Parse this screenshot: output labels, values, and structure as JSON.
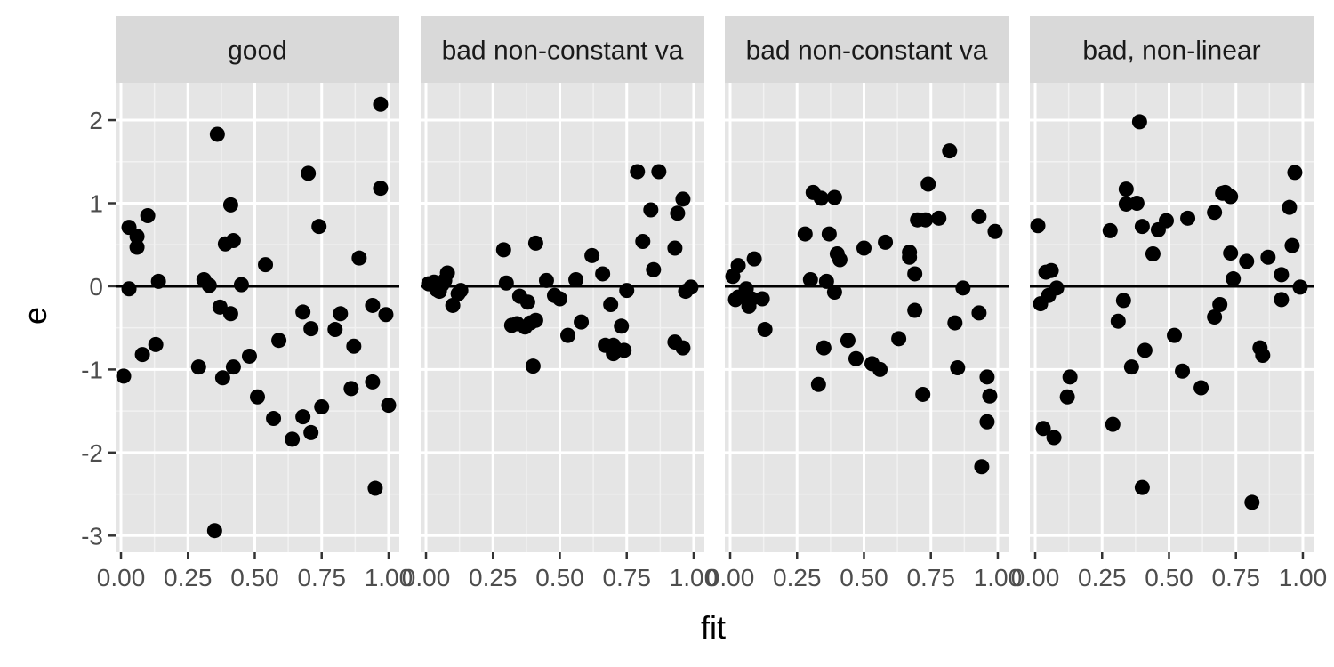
{
  "chart_data": {
    "type": "scatter",
    "xlabel": "fit",
    "ylabel": "e",
    "xlim": [
      -0.02,
      1.04
    ],
    "ylim": [
      -3.2,
      2.45
    ],
    "x_ticks": [
      0,
      0.25,
      0.5,
      0.75,
      1
    ],
    "x_tick_labels": [
      "0.00",
      "0.25",
      "0.50",
      "0.75",
      "1.00"
    ],
    "y_ticks": [
      2,
      1,
      0,
      -1,
      -2,
      -3
    ],
    "y_tick_labels": [
      "2",
      "1",
      "0",
      "-1",
      "-2",
      "-3"
    ],
    "reference_line": 0,
    "grid": true,
    "panel_background": "#e5e5e5",
    "strip_background": "#d9d9d9",
    "point_color": "#000000",
    "panels": [
      {
        "label": "good",
        "points": [
          [
            0.01,
            -1.08
          ],
          [
            0.03,
            -0.03
          ],
          [
            0.03,
            0.71
          ],
          [
            0.06,
            0.6
          ],
          [
            0.06,
            0.47
          ],
          [
            0.08,
            -0.82
          ],
          [
            0.1,
            0.85
          ],
          [
            0.13,
            -0.7
          ],
          [
            0.14,
            0.06
          ],
          [
            0.29,
            -0.97
          ],
          [
            0.31,
            0.08
          ],
          [
            0.33,
            0.01
          ],
          [
            0.35,
            -2.94
          ],
          [
            0.36,
            1.83
          ],
          [
            0.37,
            -0.25
          ],
          [
            0.38,
            -1.1
          ],
          [
            0.39,
            0.51
          ],
          [
            0.41,
            -0.33
          ],
          [
            0.41,
            0.98
          ],
          [
            0.42,
            -0.97
          ],
          [
            0.42,
            0.55
          ],
          [
            0.45,
            0.02
          ],
          [
            0.48,
            -0.84
          ],
          [
            0.51,
            -1.33
          ],
          [
            0.54,
            0.26
          ],
          [
            0.57,
            -1.59
          ],
          [
            0.59,
            -0.65
          ],
          [
            0.64,
            -1.84
          ],
          [
            0.68,
            -0.31
          ],
          [
            0.68,
            -1.57
          ],
          [
            0.7,
            1.36
          ],
          [
            0.71,
            -1.76
          ],
          [
            0.71,
            -0.51
          ],
          [
            0.74,
            0.72
          ],
          [
            0.75,
            -1.45
          ],
          [
            0.8,
            -0.52
          ],
          [
            0.82,
            -0.33
          ],
          [
            0.86,
            -1.23
          ],
          [
            0.87,
            -0.72
          ],
          [
            0.89,
            0.34
          ],
          [
            0.94,
            -1.15
          ],
          [
            0.94,
            -0.23
          ],
          [
            0.95,
            -2.43
          ],
          [
            0.97,
            1.18
          ],
          [
            0.97,
            2.19
          ],
          [
            0.99,
            -0.34
          ],
          [
            1.0,
            -1.43
          ]
        ]
      },
      {
        "label": "bad non-constant va",
        "points": [
          [
            0.01,
            0.03
          ],
          [
            0.03,
            0.05
          ],
          [
            0.04,
            -0.04
          ],
          [
            0.05,
            -0.06
          ],
          [
            0.06,
            0.02
          ],
          [
            0.07,
            0.07
          ],
          [
            0.08,
            0.16
          ],
          [
            0.1,
            -0.23
          ],
          [
            0.12,
            -0.09
          ],
          [
            0.13,
            -0.05
          ],
          [
            0.29,
            0.44
          ],
          [
            0.3,
            0.04
          ],
          [
            0.32,
            -0.47
          ],
          [
            0.34,
            -0.45
          ],
          [
            0.35,
            -0.12
          ],
          [
            0.37,
            -0.49
          ],
          [
            0.38,
            -0.19
          ],
          [
            0.39,
            -0.44
          ],
          [
            0.4,
            -0.96
          ],
          [
            0.41,
            0.52
          ],
          [
            0.41,
            -0.41
          ],
          [
            0.45,
            0.07
          ],
          [
            0.48,
            -0.11
          ],
          [
            0.5,
            -0.15
          ],
          [
            0.53,
            -0.59
          ],
          [
            0.56,
            0.08
          ],
          [
            0.58,
            -0.43
          ],
          [
            0.62,
            0.37
          ],
          [
            0.66,
            0.15
          ],
          [
            0.67,
            -0.71
          ],
          [
            0.69,
            -0.22
          ],
          [
            0.7,
            -0.81
          ],
          [
            0.7,
            -0.71
          ],
          [
            0.73,
            -0.48
          ],
          [
            0.74,
            -0.77
          ],
          [
            0.75,
            -0.05
          ],
          [
            0.79,
            1.38
          ],
          [
            0.81,
            0.54
          ],
          [
            0.84,
            0.92
          ],
          [
            0.85,
            0.2
          ],
          [
            0.87,
            1.38
          ],
          [
            0.93,
            0.46
          ],
          [
            0.93,
            -0.67
          ],
          [
            0.94,
            0.88
          ],
          [
            0.96,
            -0.74
          ],
          [
            0.96,
            1.05
          ],
          [
            0.97,
            -0.06
          ],
          [
            0.99,
            -0.01
          ]
        ]
      },
      {
        "label": "bad non-constant va",
        "points": [
          [
            0.01,
            0.12
          ],
          [
            0.02,
            -0.16
          ],
          [
            0.03,
            0.25
          ],
          [
            0.03,
            -0.13
          ],
          [
            0.06,
            -0.03
          ],
          [
            0.07,
            -0.24
          ],
          [
            0.08,
            -0.15
          ],
          [
            0.09,
            0.33
          ],
          [
            0.12,
            -0.15
          ],
          [
            0.13,
            -0.52
          ],
          [
            0.28,
            0.63
          ],
          [
            0.3,
            0.08
          ],
          [
            0.31,
            1.13
          ],
          [
            0.33,
            -1.18
          ],
          [
            0.34,
            1.06
          ],
          [
            0.35,
            -0.74
          ],
          [
            0.36,
            0.06
          ],
          [
            0.37,
            0.63
          ],
          [
            0.39,
            1.07
          ],
          [
            0.39,
            -0.07
          ],
          [
            0.4,
            0.39
          ],
          [
            0.41,
            0.32
          ],
          [
            0.44,
            -0.65
          ],
          [
            0.47,
            -0.87
          ],
          [
            0.5,
            0.46
          ],
          [
            0.53,
            -0.93
          ],
          [
            0.56,
            -1.0
          ],
          [
            0.58,
            0.53
          ],
          [
            0.63,
            -0.63
          ],
          [
            0.67,
            0.41
          ],
          [
            0.67,
            0.35
          ],
          [
            0.69,
            0.15
          ],
          [
            0.69,
            -0.29
          ],
          [
            0.7,
            0.8
          ],
          [
            0.72,
            -1.3
          ],
          [
            0.73,
            0.8
          ],
          [
            0.74,
            1.23
          ],
          [
            0.78,
            0.82
          ],
          [
            0.82,
            1.63
          ],
          [
            0.84,
            -0.44
          ],
          [
            0.85,
            -0.98
          ],
          [
            0.87,
            -0.02
          ],
          [
            0.93,
            0.84
          ],
          [
            0.93,
            -0.32
          ],
          [
            0.94,
            -2.17
          ],
          [
            0.96,
            -1.09
          ],
          [
            0.96,
            -1.63
          ],
          [
            0.97,
            -1.32
          ],
          [
            0.99,
            0.66
          ]
        ]
      },
      {
        "label": "bad, non-linear",
        "points": [
          [
            0.01,
            0.73
          ],
          [
            0.02,
            -0.21
          ],
          [
            0.03,
            -1.71
          ],
          [
            0.04,
            0.17
          ],
          [
            0.05,
            -0.11
          ],
          [
            0.06,
            0.19
          ],
          [
            0.07,
            -1.82
          ],
          [
            0.08,
            -0.02
          ],
          [
            0.12,
            -1.33
          ],
          [
            0.13,
            -1.09
          ],
          [
            0.28,
            0.67
          ],
          [
            0.29,
            -1.66
          ],
          [
            0.31,
            -0.42
          ],
          [
            0.33,
            -0.17
          ],
          [
            0.34,
            0.99
          ],
          [
            0.34,
            1.17
          ],
          [
            0.36,
            -0.97
          ],
          [
            0.38,
            1.0
          ],
          [
            0.39,
            1.98
          ],
          [
            0.4,
            -2.42
          ],
          [
            0.4,
            0.72
          ],
          [
            0.41,
            -0.77
          ],
          [
            0.44,
            0.39
          ],
          [
            0.46,
            0.68
          ],
          [
            0.49,
            0.79
          ],
          [
            0.52,
            -0.59
          ],
          [
            0.55,
            -1.02
          ],
          [
            0.57,
            0.82
          ],
          [
            0.62,
            -1.22
          ],
          [
            0.67,
            -0.37
          ],
          [
            0.67,
            0.89
          ],
          [
            0.69,
            -0.22
          ],
          [
            0.7,
            1.12
          ],
          [
            0.71,
            1.13
          ],
          [
            0.73,
            1.08
          ],
          [
            0.73,
            0.4
          ],
          [
            0.74,
            0.09
          ],
          [
            0.79,
            0.3
          ],
          [
            0.81,
            -2.6
          ],
          [
            0.84,
            -0.74
          ],
          [
            0.85,
            -0.83
          ],
          [
            0.87,
            0.35
          ],
          [
            0.92,
            0.14
          ],
          [
            0.92,
            -0.16
          ],
          [
            0.95,
            0.95
          ],
          [
            0.96,
            0.49
          ],
          [
            0.97,
            1.37
          ],
          [
            0.99,
            -0.01
          ]
        ]
      }
    ]
  }
}
